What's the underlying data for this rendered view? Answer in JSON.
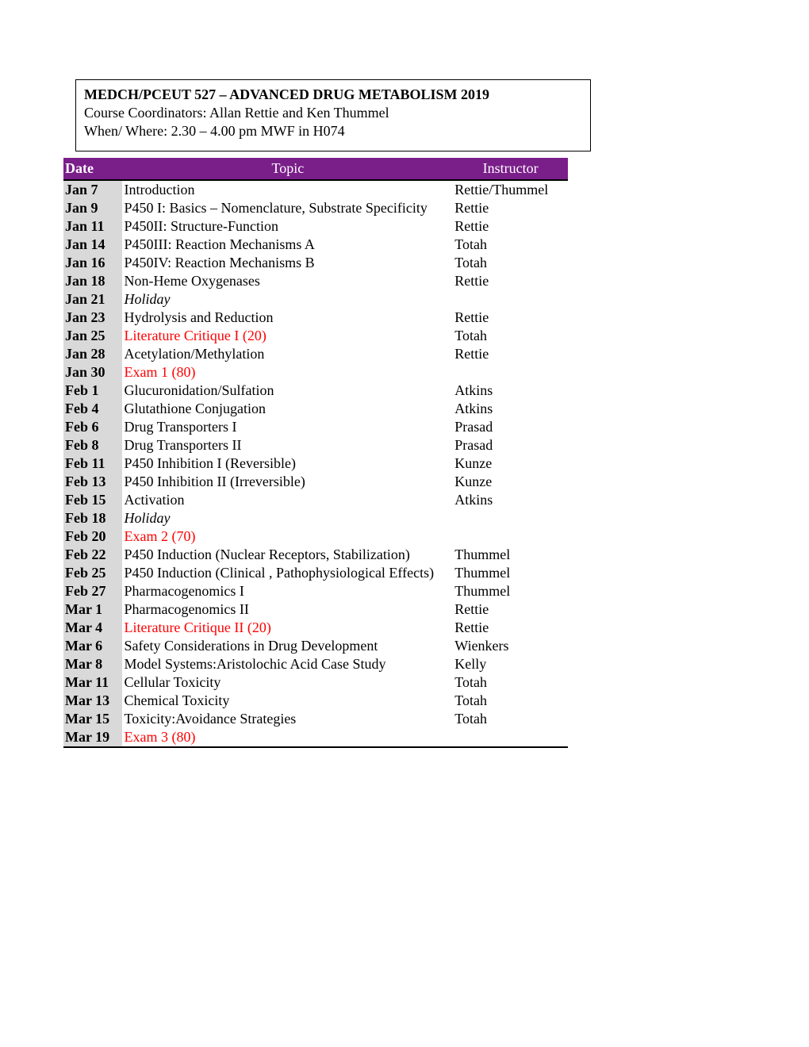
{
  "header": {
    "title": "MEDCH/PCEUT 527 – ADVANCED DRUG METABOLISM 2019",
    "coordinators": "Course Coordinators:  Allan Rettie and Ken Thummel",
    "when_where": "When/ Where: 2.30 – 4.00 pm MWF in H074"
  },
  "tableHeaders": {
    "date": "Date",
    "topic": "Topic",
    "instructor": "Instructor"
  },
  "rows": [
    {
      "date": "Jan 7",
      "topic": "Introduction",
      "instructor": "Rettie/Thummel",
      "red": false,
      "italic": false
    },
    {
      "date": "Jan 9",
      "topic": "P450 I: Basics – Nomenclature, Substrate Specificity",
      "instructor": "Rettie",
      "red": false,
      "italic": false
    },
    {
      "date": "Jan 11",
      "topic": "P450II: Structure-Function",
      "instructor": "Rettie",
      "red": false,
      "italic": false
    },
    {
      "date": "Jan 14",
      "topic": "P450III: Reaction Mechanisms A",
      "instructor": "Totah",
      "red": false,
      "italic": false
    },
    {
      "date": "Jan 16",
      "topic": "P450IV: Reaction Mechanisms B",
      "instructor": "Totah",
      "red": false,
      "italic": false
    },
    {
      "date": "Jan 18",
      "topic": "Non-Heme Oxygenases",
      "instructor": "Rettie",
      "red": false,
      "italic": false
    },
    {
      "date": "Jan 21",
      "topic": "Holiday",
      "instructor": "",
      "red": false,
      "italic": true
    },
    {
      "date": "Jan 23",
      "topic": "Hydrolysis and Reduction",
      "instructor": "Rettie",
      "red": false,
      "italic": false
    },
    {
      "date": "Jan 25",
      "topic": "Literature Critique I (20)",
      "instructor": "Totah",
      "red": true,
      "italic": false
    },
    {
      "date": "Jan 28",
      "topic": "Acetylation/Methylation",
      "instructor": "Rettie",
      "red": false,
      "italic": false
    },
    {
      "date": "Jan 30",
      "topic": "Exam 1 (80)",
      "instructor": "",
      "red": true,
      "italic": false
    },
    {
      "date": "Feb 1",
      "topic": "Glucuronidation/Sulfation",
      "instructor": "Atkins",
      "red": false,
      "italic": false
    },
    {
      "date": "Feb 4",
      "topic": "Glutathione Conjugation",
      "instructor": "Atkins",
      "red": false,
      "italic": false
    },
    {
      "date": "Feb 6",
      "topic": "Drug Transporters I",
      "instructor": "Prasad",
      "red": false,
      "italic": false
    },
    {
      "date": "Feb 8",
      "topic": "Drug Transporters II",
      "instructor": "Prasad",
      "red": false,
      "italic": false
    },
    {
      "date": "Feb 11",
      "topic": "P450 Inhibition I (Reversible)",
      "instructor": "Kunze",
      "red": false,
      "italic": false
    },
    {
      "date": "Feb 13",
      "topic": "P450 Inhibition II (Irreversible)",
      "instructor": "Kunze",
      "red": false,
      "italic": false
    },
    {
      "date": "Feb 15",
      "topic": "Activation",
      "instructor": "Atkins",
      "red": false,
      "italic": false
    },
    {
      "date": "Feb 18",
      "topic": "Holiday",
      "instructor": "",
      "red": false,
      "italic": true
    },
    {
      "date": "Feb 20",
      "topic": "Exam 2 (70)",
      "instructor": "",
      "red": true,
      "italic": false
    },
    {
      "date": "Feb 22",
      "topic": "P450 Induction (Nuclear Receptors, Stabilization)",
      "instructor": "Thummel",
      "red": false,
      "italic": false
    },
    {
      "date": "Feb 25",
      "topic": "P450 Induction (Clinical , Pathophysiological Effects)",
      "instructor": "Thummel",
      "red": false,
      "italic": false
    },
    {
      "date": "Feb 27",
      "topic": "Pharmacogenomics I",
      "instructor": "Thummel",
      "red": false,
      "italic": false
    },
    {
      "date": "Mar 1",
      "topic": "Pharmacogenomics II",
      "instructor": "Rettie",
      "red": false,
      "italic": false
    },
    {
      "date": "Mar 4",
      "topic": "Literature Critique II (20)",
      "instructor": "Rettie",
      "red": true,
      "italic": false
    },
    {
      "date": "Mar 6",
      "topic": "Safety Considerations in Drug Development",
      "instructor": "Wienkers",
      "red": false,
      "italic": false
    },
    {
      "date": "Mar 8",
      "topic": "Model Systems:Aristolochic Acid Case Study",
      "instructor": "Kelly",
      "red": false,
      "italic": false
    },
    {
      "date": "Mar 11",
      "topic": "Cellular Toxicity",
      "instructor": "Totah",
      "red": false,
      "italic": false
    },
    {
      "date": "Mar 13",
      "topic": "Chemical Toxicity",
      "instructor": "Totah",
      "red": false,
      "italic": false
    },
    {
      "date": "Mar 15",
      "topic": "Toxicity:Avoidance Strategies",
      "instructor": "Totah",
      "red": false,
      "italic": false
    },
    {
      "date": "Mar 19",
      "topic": "Exam 3 (80)",
      "instructor": "",
      "red": true,
      "italic": false
    }
  ],
  "colors": {
    "header_bg": "#7a1e8a",
    "header_text": "#ffffff",
    "date_col_bg": "#d9d9d9",
    "red_text": "#ff0000",
    "border": "#000000"
  }
}
